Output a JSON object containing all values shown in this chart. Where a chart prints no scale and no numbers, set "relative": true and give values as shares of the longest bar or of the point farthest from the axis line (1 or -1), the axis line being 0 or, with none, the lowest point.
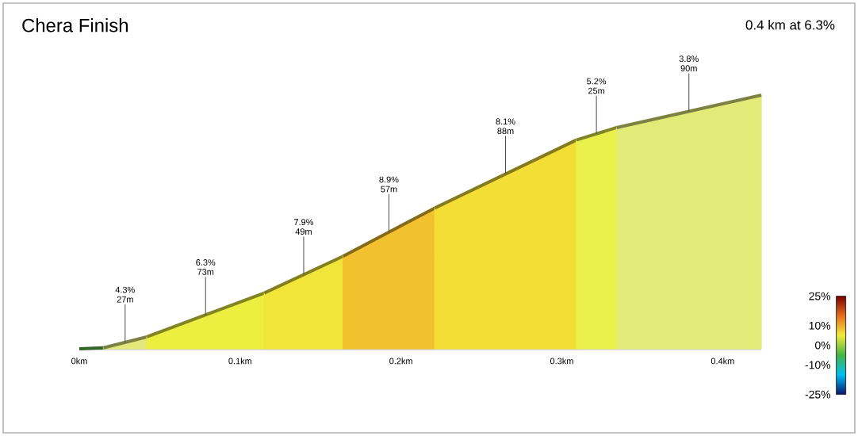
{
  "chart_data": {
    "type": "area",
    "title": "Chera Finish",
    "subtitle": "0.4 km at 6.3%",
    "relative": true,
    "tick_labels": "x",
    "xlim": [
      0,
      0.424
    ],
    "xticks": [
      {
        "value": 0,
        "label": "0km"
      },
      {
        "value": 0.1,
        "label": "0.1km"
      },
      {
        "value": 0.2,
        "label": "0.2km"
      },
      {
        "value": 0.3,
        "label": "0.3km"
      },
      {
        "value": 0.4,
        "label": "0.4km"
      }
    ],
    "series": [
      {
        "color": "#5cb84a",
        "x": [
          0,
          0.015
        ],
        "values": [
          0,
          0.004
        ]
      },
      {
        "color": "#e3e87a",
        "x": [
          0.015,
          0.042
        ],
        "values": [
          0.004,
          0.047
        ]
      },
      {
        "color": "#ecef40",
        "x": [
          0.042,
          0.115
        ],
        "values": [
          0.047,
          0.22
        ]
      },
      {
        "color": "#f2e53a",
        "x": [
          0.115,
          0.164
        ],
        "values": [
          0.22,
          0.365
        ]
      },
      {
        "color": "#f2c12e",
        "x": [
          0.164,
          0.221
        ],
        "values": [
          0.365,
          0.555
        ]
      },
      {
        "color": "#f2de35",
        "x": [
          0.221,
          0.309
        ],
        "values": [
          0.555,
          0.823
        ]
      },
      {
        "color": "#e9f04a",
        "x": [
          0.309,
          0.334
        ],
        "values": [
          0.823,
          0.872
        ]
      },
      {
        "color": "#e3eb78",
        "x": [
          0.334,
          0.424
        ],
        "values": [
          0.872,
          1
        ]
      }
    ],
    "annotations": [
      "4.3%",
      {
        "text": "27m",
        "x": 0.0285,
        "y": 0.0255
      },
      "6.3%",
      {
        "text": "73m",
        "x": 0.0785,
        "y": 0.1335
      },
      "7.9%",
      {
        "text": "49m",
        "x": 0.1395,
        "y": 0.2925
      },
      "8.9%",
      {
        "text": "57m",
        "x": 0.1925,
        "y": 0.46
      },
      "8.1%",
      {
        "text": "88m",
        "x": 0.265,
        "y": 0.689
      },
      "5.2%",
      {
        "text": "25m",
        "x": 0.3215,
        "y": 0.8475
      },
      "3.8%",
      {
        "text": "90m",
        "x": 0.379,
        "y": 0.936
      }
    ],
    "clim": [
      -25,
      25
    ],
    "cticks": [
      {
        "value": 25,
        "label": "25%"
      },
      {
        "value": 10,
        "label": "10%"
      },
      {
        "value": 0,
        "label": "0%"
      },
      {
        "value": -10,
        "label": "-10%"
      },
      {
        "value": -25,
        "label": "-25%"
      }
    ]
  }
}
